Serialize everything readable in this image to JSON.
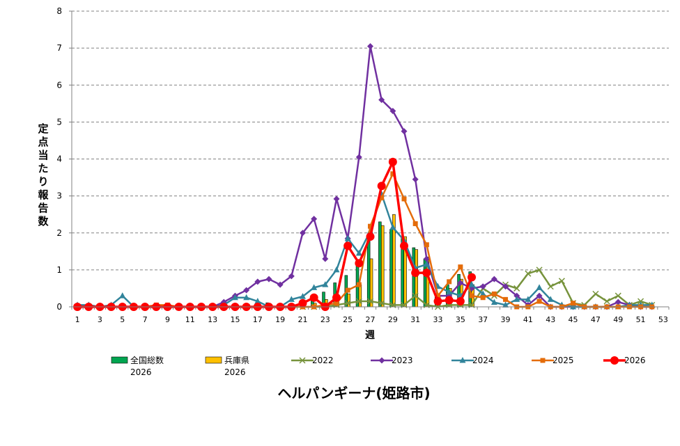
{
  "chart_data": {
    "type": "bar+line",
    "title": "ヘルパンギーナ(姫路市)",
    "xlabel": "週",
    "ylabel": "定点当たり報告数",
    "ylim": [
      0,
      8
    ],
    "yticks": [
      0,
      1,
      2,
      3,
      4,
      5,
      6,
      7,
      8
    ],
    "xlim": [
      1,
      53
    ],
    "xticks": [
      1,
      3,
      5,
      7,
      9,
      11,
      13,
      15,
      17,
      19,
      21,
      23,
      25,
      27,
      29,
      31,
      33,
      35,
      37,
      39,
      41,
      43,
      45,
      47,
      49,
      51,
      53
    ],
    "grid": "horizontal dashed",
    "legend": "bottom",
    "bars": [
      {
        "name": "全国総数",
        "sub": "2026",
        "color": "#00a550",
        "x": [
          1,
          2,
          3,
          4,
          5,
          6,
          7,
          8,
          9,
          10,
          11,
          12,
          13,
          14,
          15,
          16,
          17,
          18,
          19,
          20,
          21,
          22,
          23,
          24,
          25,
          26,
          27,
          28,
          29,
          30,
          31,
          32,
          33,
          34,
          35,
          36
        ],
        "values": [
          0.02,
          0.02,
          0.02,
          0.02,
          0.02,
          0.02,
          0.02,
          0.02,
          0.02,
          0.02,
          0.02,
          0.02,
          0.03,
          0.03,
          0.04,
          0.05,
          0.07,
          0.11,
          0.05,
          0.07,
          0.12,
          0.3,
          0.4,
          0.65,
          0.85,
          1.2,
          1.95,
          2.3,
          2.1,
          1.85,
          1.6,
          1.3,
          0.35,
          0.6,
          0.88,
          0.95
        ]
      },
      {
        "name": "兵庫県",
        "sub": "2026",
        "color": "#ffc000",
        "x": [
          1,
          2,
          3,
          4,
          5,
          6,
          7,
          8,
          9,
          10,
          11,
          12,
          13,
          14,
          15,
          16,
          17,
          18,
          19,
          20,
          21,
          22,
          23,
          24,
          25,
          26,
          27,
          28,
          29,
          30,
          31,
          32,
          33,
          34,
          35,
          36
        ],
        "values": [
          0,
          0,
          0,
          0,
          0,
          0,
          0,
          0.1,
          0.1,
          0,
          0,
          0,
          0,
          0,
          0,
          0,
          0,
          0.05,
          0,
          0,
          0.07,
          0.1,
          0.2,
          0.25,
          0.35,
          0.6,
          1.3,
          2.2,
          2.5,
          1.9,
          1.55,
          1.35,
          0.3,
          0.5,
          0.75,
          0.6
        ]
      }
    ],
    "series": [
      {
        "name": "2022",
        "color": "#77933c",
        "marker": "x",
        "x": [
          1,
          2,
          3,
          4,
          5,
          6,
          7,
          8,
          9,
          10,
          11,
          12,
          13,
          14,
          15,
          16,
          17,
          18,
          19,
          20,
          21,
          22,
          23,
          24,
          25,
          26,
          27,
          28,
          29,
          30,
          31,
          32,
          33,
          34,
          35,
          36,
          37,
          38,
          39,
          40,
          41,
          42,
          43,
          44,
          45,
          46,
          47,
          48,
          49,
          50,
          51,
          52
        ],
        "values": [
          0,
          0,
          0,
          0,
          0,
          0,
          0,
          0,
          0,
          0,
          0,
          0,
          0,
          0,
          0,
          0,
          0,
          0,
          0,
          0,
          0,
          0,
          0,
          0.05,
          0.1,
          0.15,
          0.15,
          0.1,
          0.05,
          0.05,
          0.3,
          0.05,
          0,
          0.05,
          0.05,
          0.05,
          0.5,
          0.3,
          0.6,
          0.5,
          0.9,
          1.0,
          0.55,
          0.7,
          0.1,
          0.05,
          0.35,
          0.15,
          0.3,
          0.05,
          0.15,
          0.05
        ]
      },
      {
        "name": "2023",
        "color": "#7030a0",
        "marker": "diamond",
        "x": [
          1,
          2,
          3,
          4,
          5,
          6,
          7,
          8,
          9,
          10,
          11,
          12,
          13,
          14,
          15,
          16,
          17,
          18,
          19,
          20,
          21,
          22,
          23,
          24,
          25,
          26,
          27,
          28,
          29,
          30,
          31,
          32,
          33,
          34,
          35,
          36,
          37,
          38,
          39,
          40,
          41,
          42,
          43,
          44,
          45,
          46,
          47,
          48,
          49,
          50,
          51,
          52
        ],
        "values": [
          0,
          0,
          0,
          0,
          0,
          0,
          0,
          0,
          0,
          0,
          0,
          0,
          0,
          0.13,
          0.3,
          0.45,
          0.68,
          0.75,
          0.6,
          0.83,
          2.0,
          2.38,
          1.3,
          2.92,
          1.85,
          4.05,
          7.05,
          5.6,
          5.3,
          4.75,
          3.45,
          1.3,
          0.3,
          0.3,
          0.65,
          0.5,
          0.55,
          0.75,
          0.55,
          0.3,
          0.05,
          0.3,
          0,
          0,
          0,
          0,
          0,
          0,
          0.13,
          0.05,
          0,
          0
        ]
      },
      {
        "name": "2024",
        "color": "#31849b",
        "marker": "triangle",
        "x": [
          1,
          2,
          3,
          4,
          5,
          6,
          7,
          8,
          9,
          10,
          11,
          12,
          13,
          14,
          15,
          16,
          17,
          18,
          19,
          20,
          21,
          22,
          23,
          24,
          25,
          26,
          27,
          28,
          29,
          30,
          31,
          32,
          33,
          34,
          35,
          36,
          37,
          38,
          39,
          40,
          41,
          42,
          43,
          44,
          45,
          46,
          47,
          48,
          49,
          50,
          51,
          52
        ],
        "values": [
          0.05,
          0.05,
          0,
          0.05,
          0.3,
          0,
          0,
          0,
          0,
          0,
          0,
          0,
          0,
          0.05,
          0.25,
          0.25,
          0.15,
          0,
          0,
          0.2,
          0.28,
          0.52,
          0.6,
          1.0,
          1.85,
          1.45,
          2.05,
          3.05,
          2.15,
          1.8,
          1.05,
          1.15,
          0.55,
          0.4,
          0.3,
          0.6,
          0.35,
          0.12,
          0.05,
          0.2,
          0.2,
          0.52,
          0.2,
          0.05,
          0,
          0,
          0,
          0,
          0,
          0.05,
          0.05,
          0.05
        ]
      },
      {
        "name": "2025",
        "color": "#e46c0a",
        "marker": "square",
        "x": [
          1,
          2,
          3,
          4,
          5,
          6,
          7,
          8,
          9,
          10,
          11,
          12,
          13,
          14,
          15,
          16,
          17,
          18,
          19,
          20,
          21,
          22,
          23,
          24,
          25,
          26,
          27,
          28,
          29,
          30,
          31,
          32,
          33,
          34,
          35,
          36,
          37,
          38,
          39,
          40,
          41,
          42,
          43,
          44,
          45,
          46,
          47,
          48,
          49,
          50,
          51,
          52
        ],
        "values": [
          0,
          0,
          0,
          0,
          0,
          0,
          0,
          0.05,
          0.05,
          0,
          0,
          0,
          0,
          0,
          0,
          0,
          0,
          0,
          0,
          0,
          0,
          0,
          0.05,
          0.1,
          0.45,
          0.6,
          2.18,
          2.95,
          3.6,
          2.92,
          2.25,
          1.68,
          0.3,
          0.68,
          1.08,
          0.3,
          0.25,
          0.35,
          0.2,
          0,
          0,
          0.15,
          0,
          0,
          0.1,
          0,
          0,
          0,
          0,
          0,
          0,
          0
        ]
      },
      {
        "name": "2026",
        "color": "#ff0000",
        "marker": "circle",
        "x": [
          1,
          2,
          3,
          4,
          5,
          6,
          7,
          8,
          9,
          10,
          11,
          12,
          13,
          14,
          15,
          16,
          17,
          18,
          19,
          20,
          21,
          22,
          23,
          24,
          25,
          26,
          27,
          28,
          29,
          30,
          31,
          32,
          33,
          34,
          35,
          36
        ],
        "values": [
          0,
          0,
          0,
          0,
          0,
          0,
          0,
          0,
          0,
          0,
          0,
          0,
          0,
          0,
          0,
          0,
          0,
          0,
          0,
          0,
          0.1,
          0.25,
          0,
          0.25,
          1.65,
          1.18,
          1.9,
          3.27,
          3.92,
          1.65,
          0.92,
          0.92,
          0.15,
          0.18,
          0.15,
          0.8
        ]
      }
    ]
  }
}
